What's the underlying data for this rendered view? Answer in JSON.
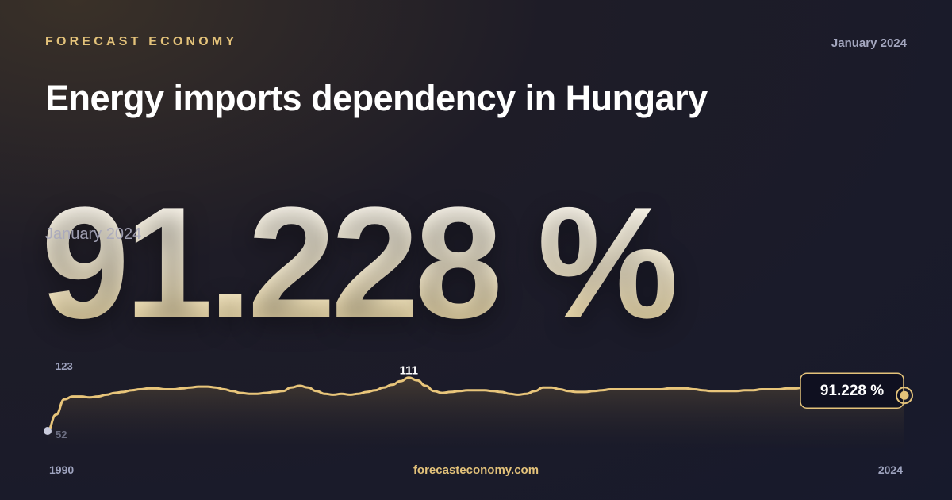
{
  "header": {
    "brand": "FORECAST ECONOMY",
    "date": "January 2024",
    "title": "Energy imports dependency in Hungary"
  },
  "headline": {
    "value": "91.228 %",
    "date_label": "January 2024"
  },
  "footer": {
    "start_year": "1990",
    "end_year": "2024",
    "site": "forecasteconomy.com"
  },
  "colors": {
    "accent": "#e3c27a",
    "line": "#e8c57a",
    "muted": "#9ea3be",
    "start_dot": "#c9cbdc"
  },
  "chart_data": {
    "type": "area",
    "title": "Energy imports dependency in Hungary",
    "xlabel": "",
    "ylabel": "",
    "x_range": [
      "1990",
      "2024"
    ],
    "ylim": [
      52,
      123
    ],
    "y_tick_labels": [
      "123",
      "52"
    ],
    "peak_label": "111",
    "last_value_label": "91.228 %",
    "grid": false,
    "legend": "none",
    "series": [
      {
        "values": [
          52,
          70,
          87,
          90,
          90,
          89,
          90,
          92,
          94,
          95,
          97,
          98,
          99,
          99,
          98,
          98,
          99,
          100,
          101,
          101,
          100,
          98,
          96,
          94,
          93,
          93,
          94,
          95,
          96,
          100,
          102,
          100,
          96,
          93,
          92,
          93,
          92,
          93,
          95,
          97,
          100,
          103,
          107,
          111,
          108,
          102,
          96,
          94,
          95,
          96,
          97,
          97,
          97,
          96,
          95,
          93,
          92,
          93,
          96,
          100,
          100,
          98,
          96,
          95,
          95,
          96,
          97,
          98,
          98,
          98,
          98,
          98,
          98,
          98,
          99,
          99,
          99,
          98,
          97,
          96,
          96,
          96,
          96,
          97,
          97,
          98,
          98,
          98,
          99,
          99,
          100,
          100,
          99,
          98,
          97,
          96,
          96,
          95,
          94,
          93,
          93,
          93,
          91.228
        ]
      }
    ]
  }
}
